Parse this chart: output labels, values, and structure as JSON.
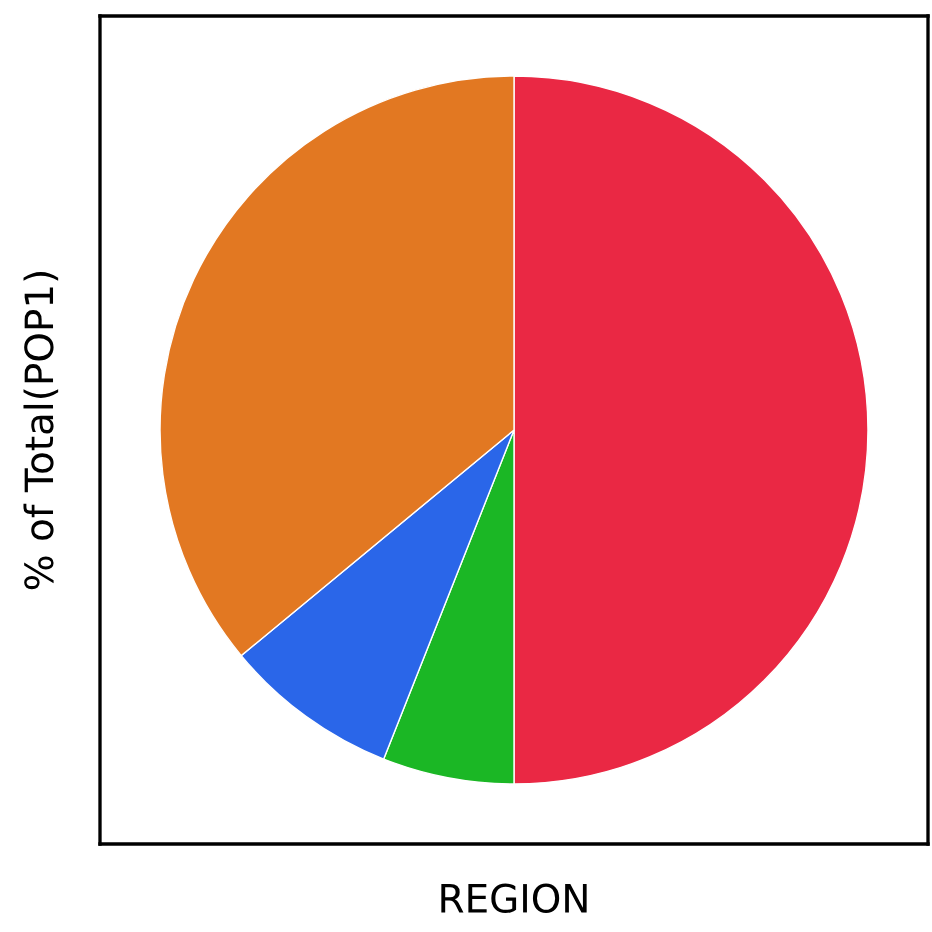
{
  "chart_data": {
    "type": "pie",
    "xlabel": "REGION",
    "ylabel": "% of Total(POP1)",
    "categories": [
      null,
      null,
      null,
      null
    ],
    "values": [
      50,
      6,
      8,
      36
    ],
    "colors": [
      "#ea2844",
      "#1bb725",
      "#2a66e9",
      "#e27822"
    ]
  }
}
